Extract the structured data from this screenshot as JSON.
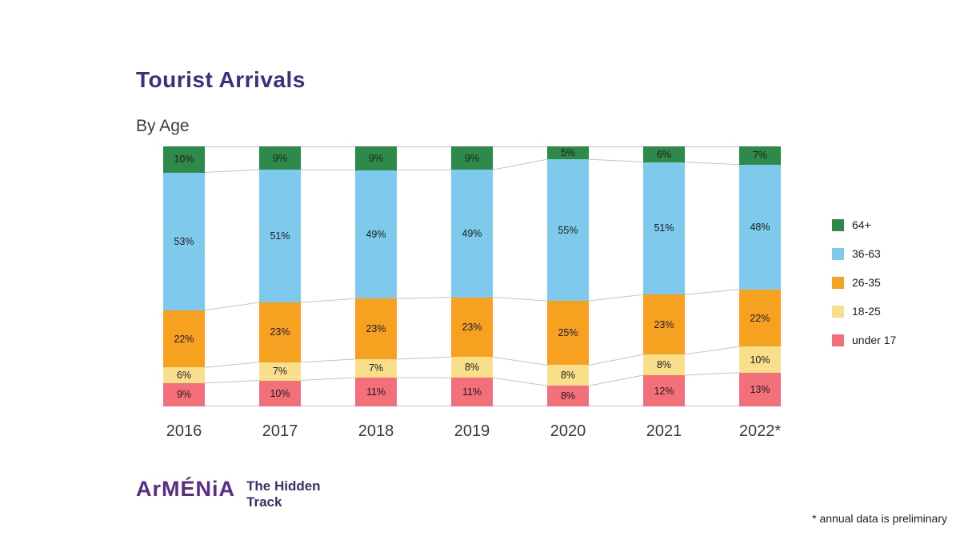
{
  "chart_data": {
    "type": "bar",
    "variant": "stacked-percent",
    "title": "Tourist Arrivals",
    "subtitle": "By Age",
    "categories": [
      "2016",
      "2017",
      "2018",
      "2019",
      "2020",
      "2021",
      "2022*"
    ],
    "series": [
      {
        "name": "64+",
        "color": "#2f8a4a",
        "values": [
          10,
          9,
          9,
          9,
          5,
          6,
          7
        ]
      },
      {
        "name": "36-63",
        "color": "#7ec9ec",
        "values": [
          53,
          51,
          49,
          49,
          55,
          51,
          48
        ]
      },
      {
        "name": "26-35",
        "color": "#f6a120",
        "values": [
          22,
          23,
          23,
          23,
          25,
          23,
          22
        ]
      },
      {
        "name": "18-25",
        "color": "#f9df8b",
        "values": [
          6,
          7,
          7,
          8,
          8,
          8,
          10
        ]
      },
      {
        "name": "under 17",
        "color": "#f3707b",
        "values": [
          9,
          10,
          11,
          11,
          8,
          12,
          13
        ]
      }
    ],
    "value_suffix": "%",
    "legend_position": "right",
    "connector_line_color": "#c4c4c4"
  },
  "branding": {
    "logo_main": "ArMÉNiA",
    "logo_tagline_line1": "The Hidden",
    "logo_tagline_line2": "Track"
  },
  "footnote": "* annual data is preliminary"
}
